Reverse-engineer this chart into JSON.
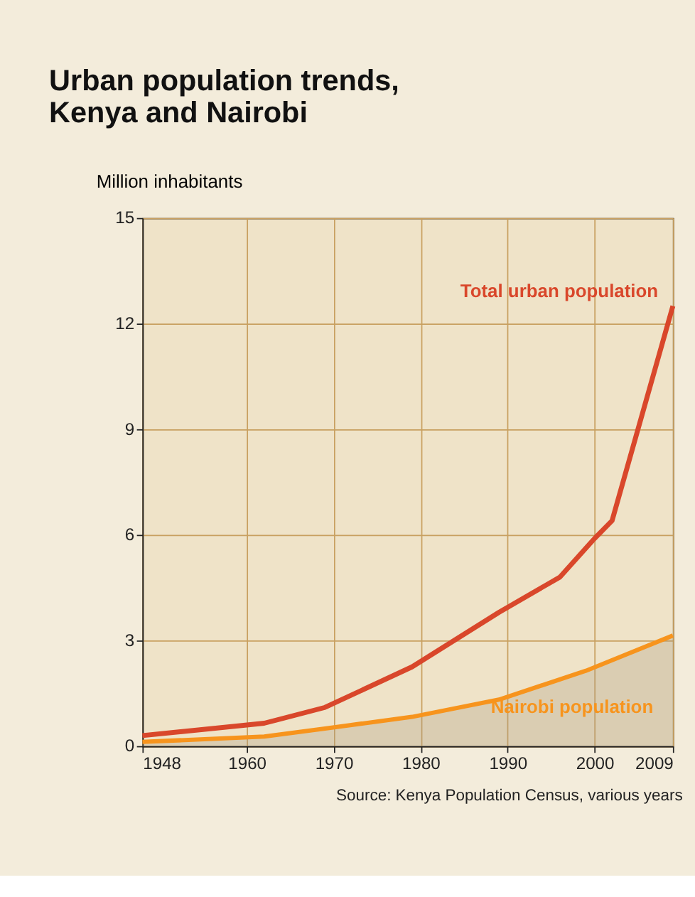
{
  "chart_data": {
    "type": "line",
    "title": "Urban population trends,\nKenya and Nairobi",
    "ylabel": "Million inhabitants",
    "annotations": [
      "Source: Kenya Population Census, various years"
    ],
    "x": [
      1948,
      1962,
      1969,
      1979,
      1989,
      1996,
      2000,
      2002,
      2009
    ],
    "series": [
      {
        "name": "Total urban population",
        "color": "#d9472b",
        "values": [
          0.3,
          0.65,
          1.1,
          2.25,
          3.8,
          4.8,
          5.9,
          6.4,
          12.5
        ]
      },
      {
        "name": "Nairobi population",
        "color": "#f7941d",
        "type": "area",
        "x": [
          1948,
          1962,
          1969,
          1979,
          1989,
          1999,
          2009
        ],
        "values": [
          0.12,
          0.27,
          0.5,
          0.83,
          1.32,
          2.14,
          3.14
        ]
      }
    ],
    "xlim": [
      1948,
      2009
    ],
    "xticks": [
      1948,
      1960,
      1970,
      1980,
      1990,
      2000,
      2009
    ],
    "ylim": [
      0,
      15
    ],
    "yticks": [
      0,
      3,
      6,
      9,
      12,
      15
    ],
    "grid": true
  }
}
